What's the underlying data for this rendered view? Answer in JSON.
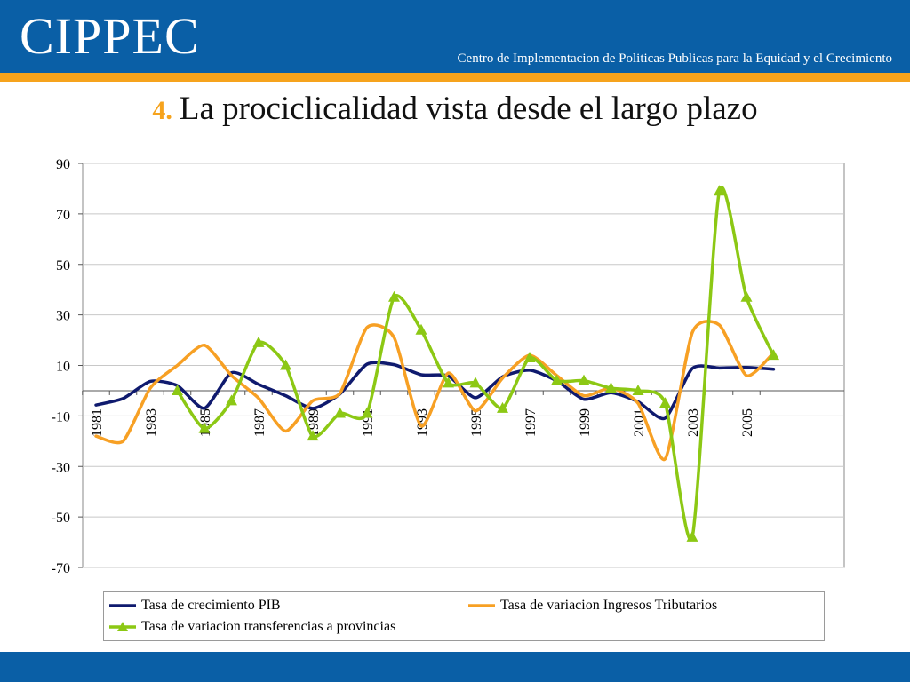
{
  "header": {
    "logo": "CIPPEC",
    "subtitle": "Centro de Implementacion de Politicas Publicas para la Equidad y el Crecimiento"
  },
  "slide": {
    "title_number": "4.",
    "title": "La prociclicalidad vista desde el largo plazo"
  },
  "colors": {
    "header_blue": "#0a5fa6",
    "accent_orange": "#f6a31d",
    "series_pib": "#0f1a6e",
    "series_tributarios": "#f7a024",
    "series_transferencias": "#8cc814"
  },
  "chart_data": {
    "type": "line",
    "title": "",
    "xlabel": "",
    "ylabel": "",
    "ylim": [
      -70,
      90
    ],
    "yticks": [
      90,
      70,
      50,
      30,
      10,
      -10,
      -30,
      -50,
      -70
    ],
    "x": [
      1981,
      1982,
      1983,
      1984,
      1985,
      1986,
      1987,
      1988,
      1989,
      1990,
      1991,
      1992,
      1993,
      1994,
      1995,
      1996,
      1997,
      1998,
      1999,
      2000,
      2001,
      2002,
      2003,
      2004,
      2005,
      2006
    ],
    "xtick_labels": [
      "1981",
      "1983",
      "1985",
      "1987",
      "1989",
      "1991",
      "1993",
      "1995",
      "1997",
      "1999",
      "2001",
      "2003",
      "2005"
    ],
    "grid": true,
    "legend_position": "bottom",
    "series": [
      {
        "name": "Tasa de crecimiento PIB",
        "marker": "none",
        "x": [
          1981,
          1982,
          1983,
          1984,
          1985,
          1986,
          1987,
          1988,
          1989,
          1990,
          1991,
          1992,
          1993,
          1994,
          1995,
          1996,
          1997,
          1998,
          1999,
          2000,
          2001,
          2002,
          2003,
          2004,
          2005,
          2006
        ],
        "values": [
          -5.7,
          -3.1,
          3.7,
          2.0,
          -7.0,
          7.1,
          2.5,
          -2.0,
          -7.0,
          -1.3,
          10.5,
          10.3,
          6.3,
          5.8,
          -2.8,
          5.5,
          8.1,
          3.9,
          -3.4,
          -0.8,
          -4.4,
          -10.9,
          8.8,
          9.0,
          9.2,
          8.5
        ]
      },
      {
        "name": "Tasa de variacion Ingresos Tributarios",
        "marker": "none",
        "x": [
          1981,
          1982,
          1983,
          1984,
          1985,
          1986,
          1987,
          1988,
          1989,
          1990,
          1991,
          1992,
          1993,
          1994,
          1995,
          1996,
          1997,
          1998,
          1999,
          2000,
          2001,
          2002,
          2003,
          2004,
          2005,
          2006
        ],
        "values": [
          -18,
          -20,
          1,
          10,
          18,
          6,
          -3,
          -16,
          -4,
          -1,
          25,
          21,
          -14,
          7,
          -8,
          5,
          14,
          6,
          -2,
          1,
          -5,
          -27,
          23,
          26,
          6,
          15
        ]
      },
      {
        "name": "Tasa de variacion transferencias a provincias",
        "marker": "triangle",
        "x": [
          1984,
          1985,
          1986,
          1987,
          1988,
          1989,
          1990,
          1991,
          1992,
          1993,
          1994,
          1995,
          1996,
          1997,
          1998,
          1999,
          2000,
          2001,
          2002,
          2003,
          2004,
          2005,
          2006
        ],
        "values": [
          0,
          -15,
          -4,
          19,
          10,
          -18,
          -9,
          -9,
          37,
          24,
          3,
          3,
          -7,
          13,
          4,
          4,
          1,
          0,
          -5,
          -58,
          79,
          37,
          14
        ]
      }
    ]
  }
}
